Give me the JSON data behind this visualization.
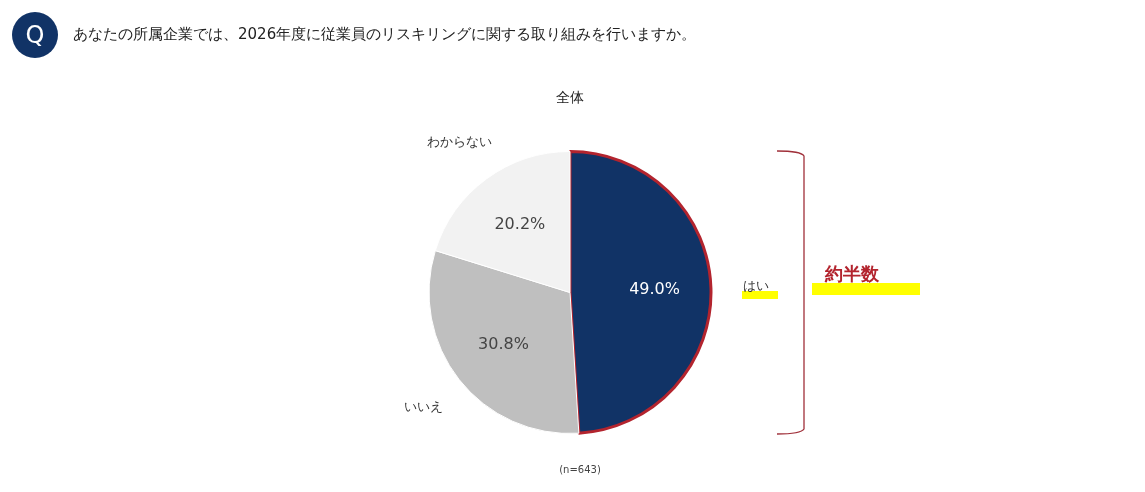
{
  "chart_data": {
    "type": "pie",
    "title": "あなたの所属企業では、2026年度に従業員のリスキリングに関する取り組みを行いますか。",
    "subtitle": "全体",
    "categories": [
      "はい",
      "いいえ",
      "わからない"
    ],
    "values": [
      49.0,
      30.8,
      20.2
    ],
    "colors": [
      "#113366",
      "#bfbfbf",
      "#f2f2f2"
    ],
    "value_labels": [
      "49.0%",
      "30.8%",
      "20.2%"
    ],
    "legend": false,
    "annotations": [
      "Q",
      "約半数",
      "(n=643)"
    ]
  }
}
